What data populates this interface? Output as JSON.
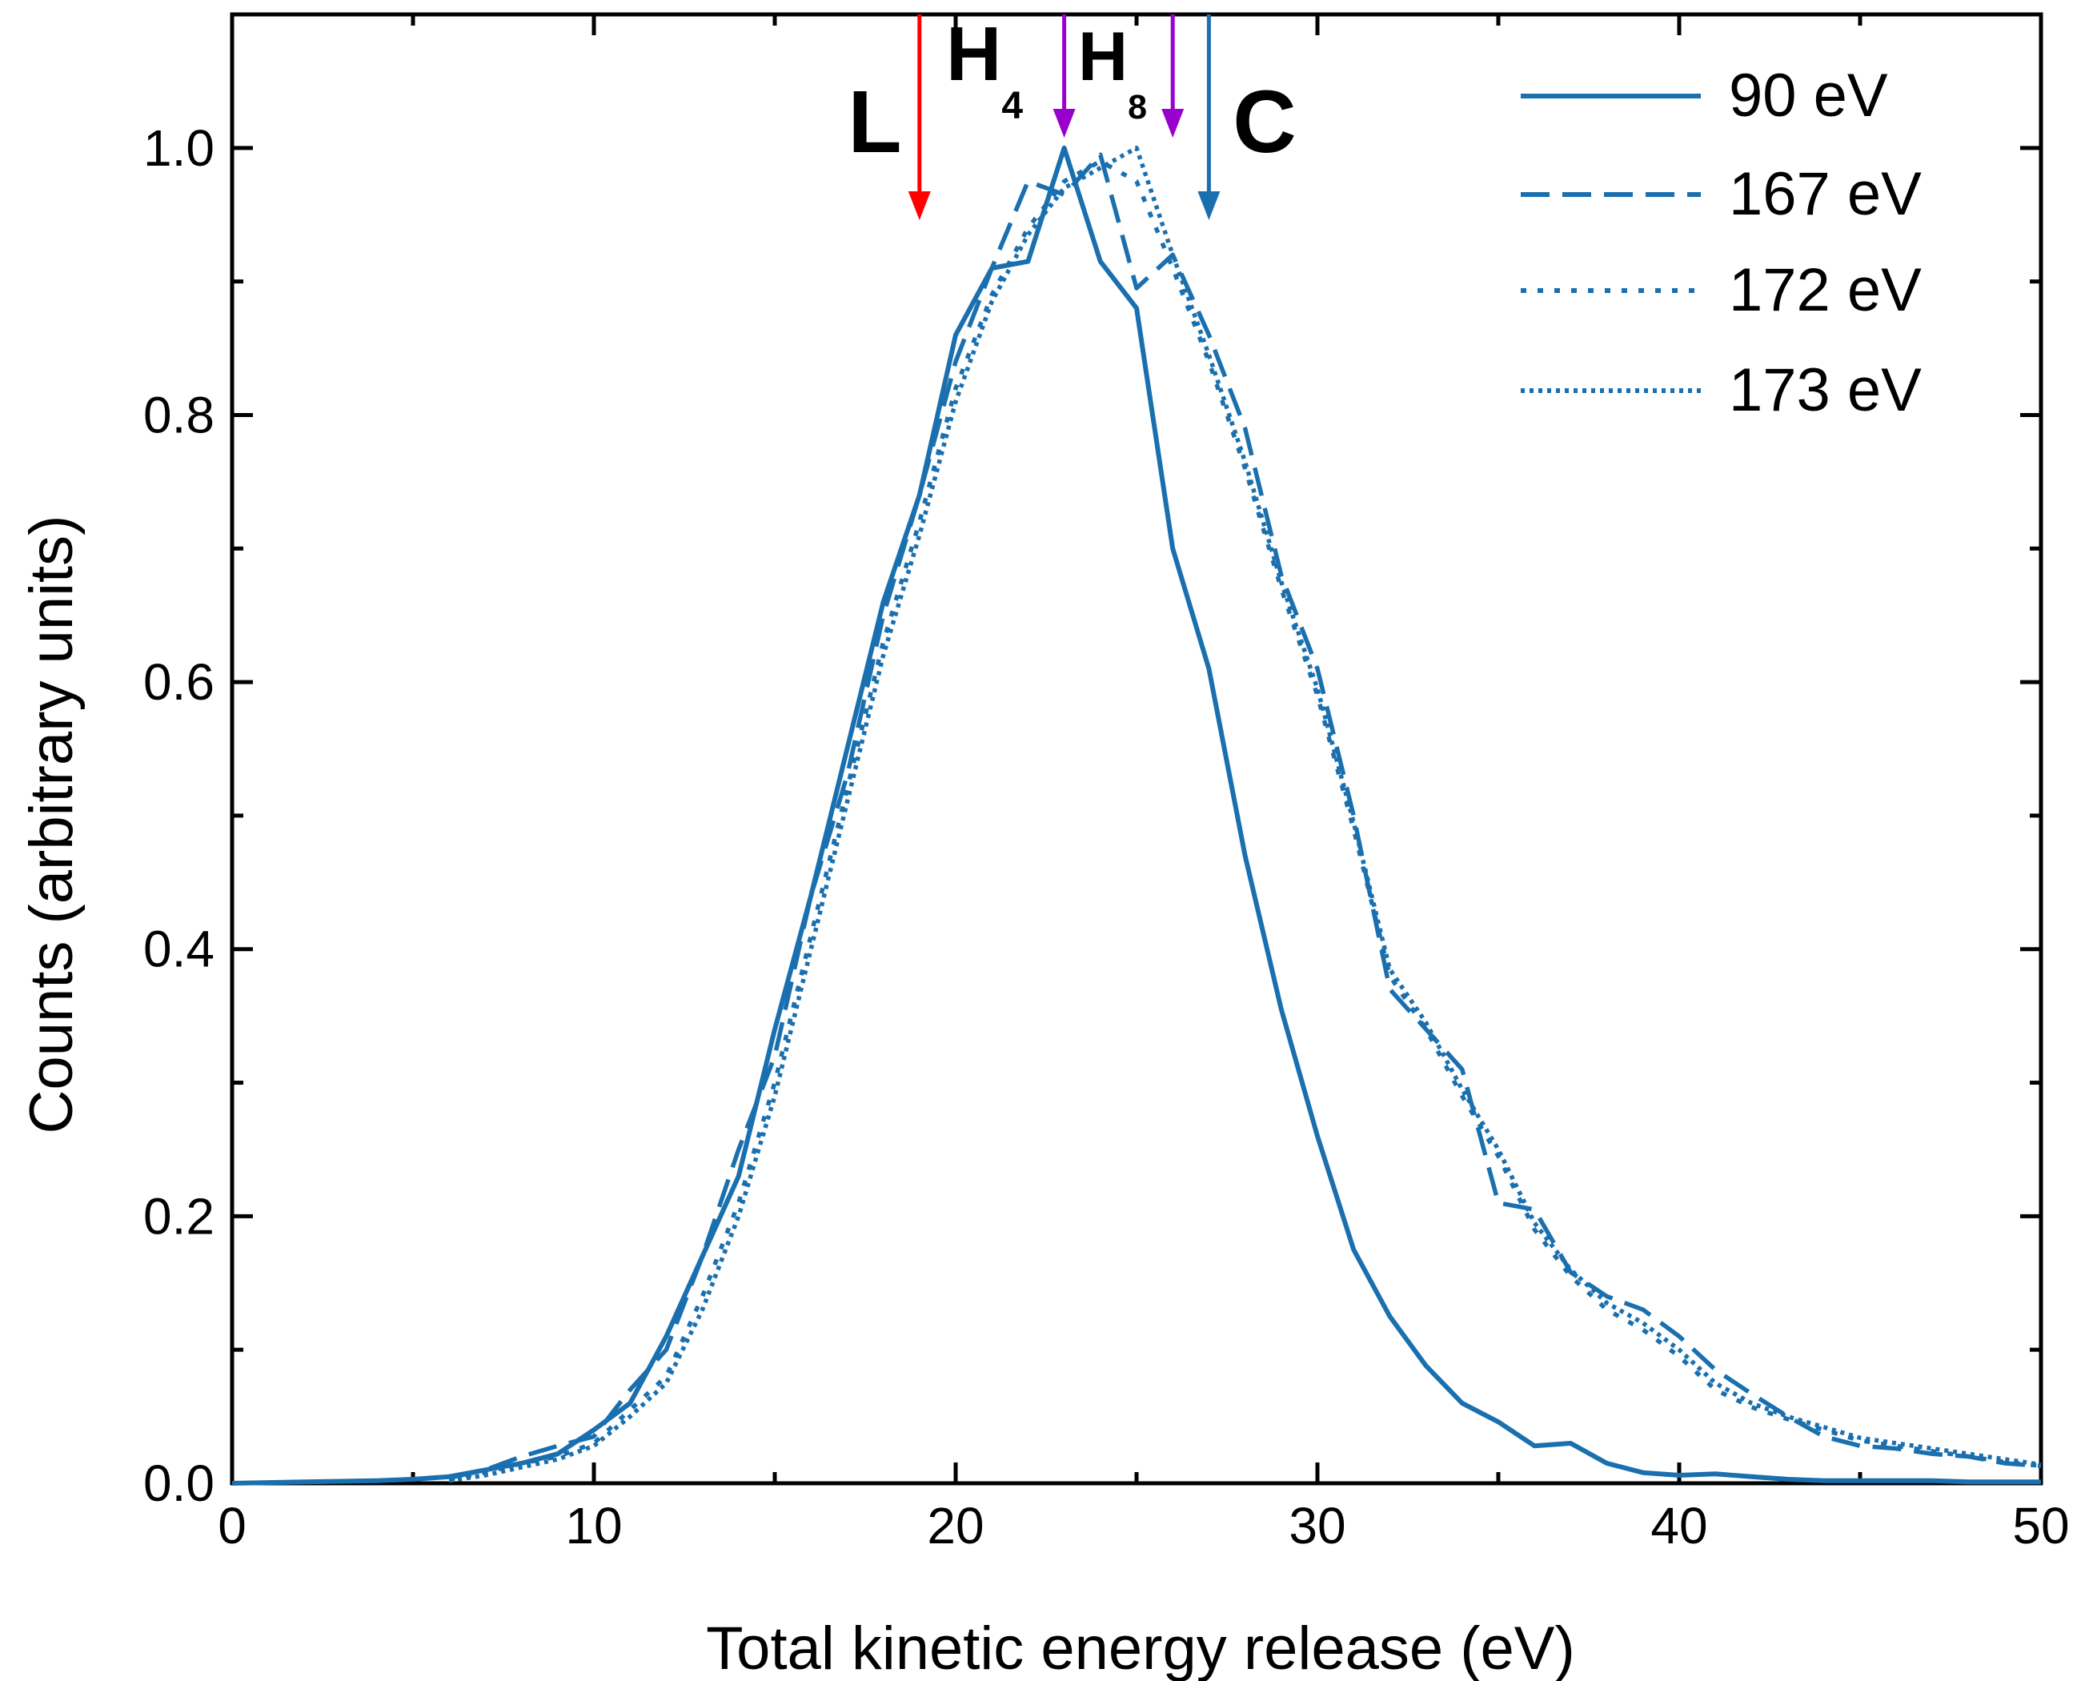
{
  "chart_data": {
    "type": "line",
    "title": "",
    "xlabel": "Total kinetic energy release (eV)",
    "ylabel": "Counts (arbitrary units)",
    "xlim": [
      0,
      50
    ],
    "ylim": [
      0,
      1.1
    ],
    "x_ticks": [
      "0",
      "10",
      "20",
      "30",
      "40",
      "50"
    ],
    "y_ticks": [
      "0.0",
      "0.2",
      "0.4",
      "0.6",
      "0.8",
      "1.0"
    ],
    "x_tick_values": [
      0,
      10,
      20,
      30,
      40,
      50
    ],
    "y_tick_values": [
      0,
      0.2,
      0.4,
      0.6,
      0.8,
      1.0
    ],
    "grid": false,
    "legend_position": "top-right",
    "series": [
      {
        "name": "90 eV",
        "style": "solid",
        "x": [
          0,
          2,
          4,
          5,
          6,
          7,
          8,
          9,
          10,
          11,
          12,
          13,
          14,
          15,
          16,
          17,
          18,
          19,
          20,
          21,
          22,
          23,
          24,
          25,
          26,
          27,
          28,
          29,
          30,
          31,
          32,
          33,
          34,
          35,
          36,
          37,
          38,
          39,
          40,
          41,
          42,
          43,
          44,
          45,
          46,
          47,
          48,
          49,
          50
        ],
        "y": [
          0.0,
          0.001,
          0.002,
          0.003,
          0.005,
          0.01,
          0.015,
          0.022,
          0.04,
          0.06,
          0.11,
          0.17,
          0.23,
          0.34,
          0.44,
          0.55,
          0.66,
          0.74,
          0.86,
          0.91,
          0.915,
          1.0,
          0.915,
          0.88,
          0.7,
          0.61,
          0.47,
          0.355,
          0.26,
          0.175,
          0.125,
          0.088,
          0.06,
          0.046,
          0.028,
          0.03,
          0.015,
          0.008,
          0.006,
          0.007,
          0.005,
          0.003,
          0.002,
          0.002,
          0.002,
          0.002,
          0.001,
          0.001,
          0.001
        ]
      },
      {
        "name": "167 eV",
        "style": "dashed",
        "x": [
          6,
          7,
          8,
          9,
          10,
          11,
          12,
          13,
          14,
          15,
          16,
          17,
          18,
          19,
          20,
          21,
          22,
          23,
          24,
          25,
          26,
          27,
          28,
          29,
          30,
          31,
          32,
          33,
          34,
          35,
          36,
          37,
          38,
          39,
          40,
          41,
          42,
          43,
          44,
          45,
          46,
          47,
          48,
          49,
          50
        ],
        "y": [
          0.004,
          0.01,
          0.02,
          0.028,
          0.035,
          0.07,
          0.1,
          0.17,
          0.25,
          0.32,
          0.44,
          0.53,
          0.65,
          0.74,
          0.84,
          0.91,
          0.975,
          0.965,
          0.995,
          0.895,
          0.92,
          0.86,
          0.79,
          0.68,
          0.61,
          0.5,
          0.37,
          0.34,
          0.31,
          0.21,
          0.205,
          0.158,
          0.14,
          0.13,
          0.11,
          0.085,
          0.067,
          0.05,
          0.035,
          0.028,
          0.026,
          0.022,
          0.02,
          0.015,
          0.013
        ]
      },
      {
        "name": "172 eV",
        "style": "dotted",
        "x": [
          6,
          7,
          8,
          9,
          10,
          11,
          12,
          13,
          14,
          15,
          16,
          17,
          18,
          19,
          20,
          21,
          22,
          23,
          24,
          25,
          26,
          27,
          28,
          29,
          30,
          31,
          32,
          33,
          34,
          35,
          36,
          37,
          38,
          39,
          40,
          41,
          42,
          43,
          44,
          45,
          46,
          47,
          48,
          49,
          50
        ],
        "y": [
          0.003,
          0.008,
          0.015,
          0.02,
          0.03,
          0.055,
          0.08,
          0.14,
          0.21,
          0.3,
          0.41,
          0.52,
          0.63,
          0.72,
          0.82,
          0.89,
          0.94,
          0.975,
          0.99,
          0.975,
          0.91,
          0.84,
          0.76,
          0.67,
          0.59,
          0.49,
          0.38,
          0.34,
          0.29,
          0.245,
          0.19,
          0.155,
          0.13,
          0.115,
          0.095,
          0.07,
          0.057,
          0.048,
          0.04,
          0.032,
          0.028,
          0.024,
          0.02,
          0.016,
          0.013
        ]
      },
      {
        "name": "173 eV",
        "style": "fine-dotted",
        "x": [
          6,
          7,
          8,
          9,
          10,
          11,
          12,
          13,
          14,
          15,
          16,
          17,
          18,
          19,
          20,
          21,
          22,
          23,
          24,
          25,
          26,
          27,
          28,
          29,
          30,
          31,
          32,
          33,
          34,
          35,
          36,
          37,
          38,
          39,
          40,
          41,
          42,
          43,
          44,
          45,
          46,
          47,
          48,
          49,
          50
        ],
        "y": [
          0.002,
          0.006,
          0.012,
          0.018,
          0.028,
          0.05,
          0.075,
          0.13,
          0.2,
          0.29,
          0.4,
          0.51,
          0.62,
          0.71,
          0.81,
          0.885,
          0.935,
          0.97,
          0.985,
          1.0,
          0.92,
          0.845,
          0.765,
          0.675,
          0.595,
          0.495,
          0.385,
          0.345,
          0.295,
          0.25,
          0.195,
          0.16,
          0.135,
          0.12,
          0.1,
          0.075,
          0.06,
          0.05,
          0.042,
          0.034,
          0.03,
          0.026,
          0.022,
          0.018,
          0.014
        ]
      }
    ],
    "annotations": [
      {
        "label": "L",
        "subscript": "",
        "x": 19,
        "color": "#ff0000"
      },
      {
        "label": "H",
        "subscript": "4",
        "x": 23,
        "color": "#9900cc"
      },
      {
        "label": "H",
        "subscript": "8",
        "x": 26,
        "color": "#9900cc"
      },
      {
        "label": "C",
        "subscript": "",
        "x": 27,
        "color": "#1a6faf"
      }
    ],
    "line_color": "#1a6faf"
  }
}
